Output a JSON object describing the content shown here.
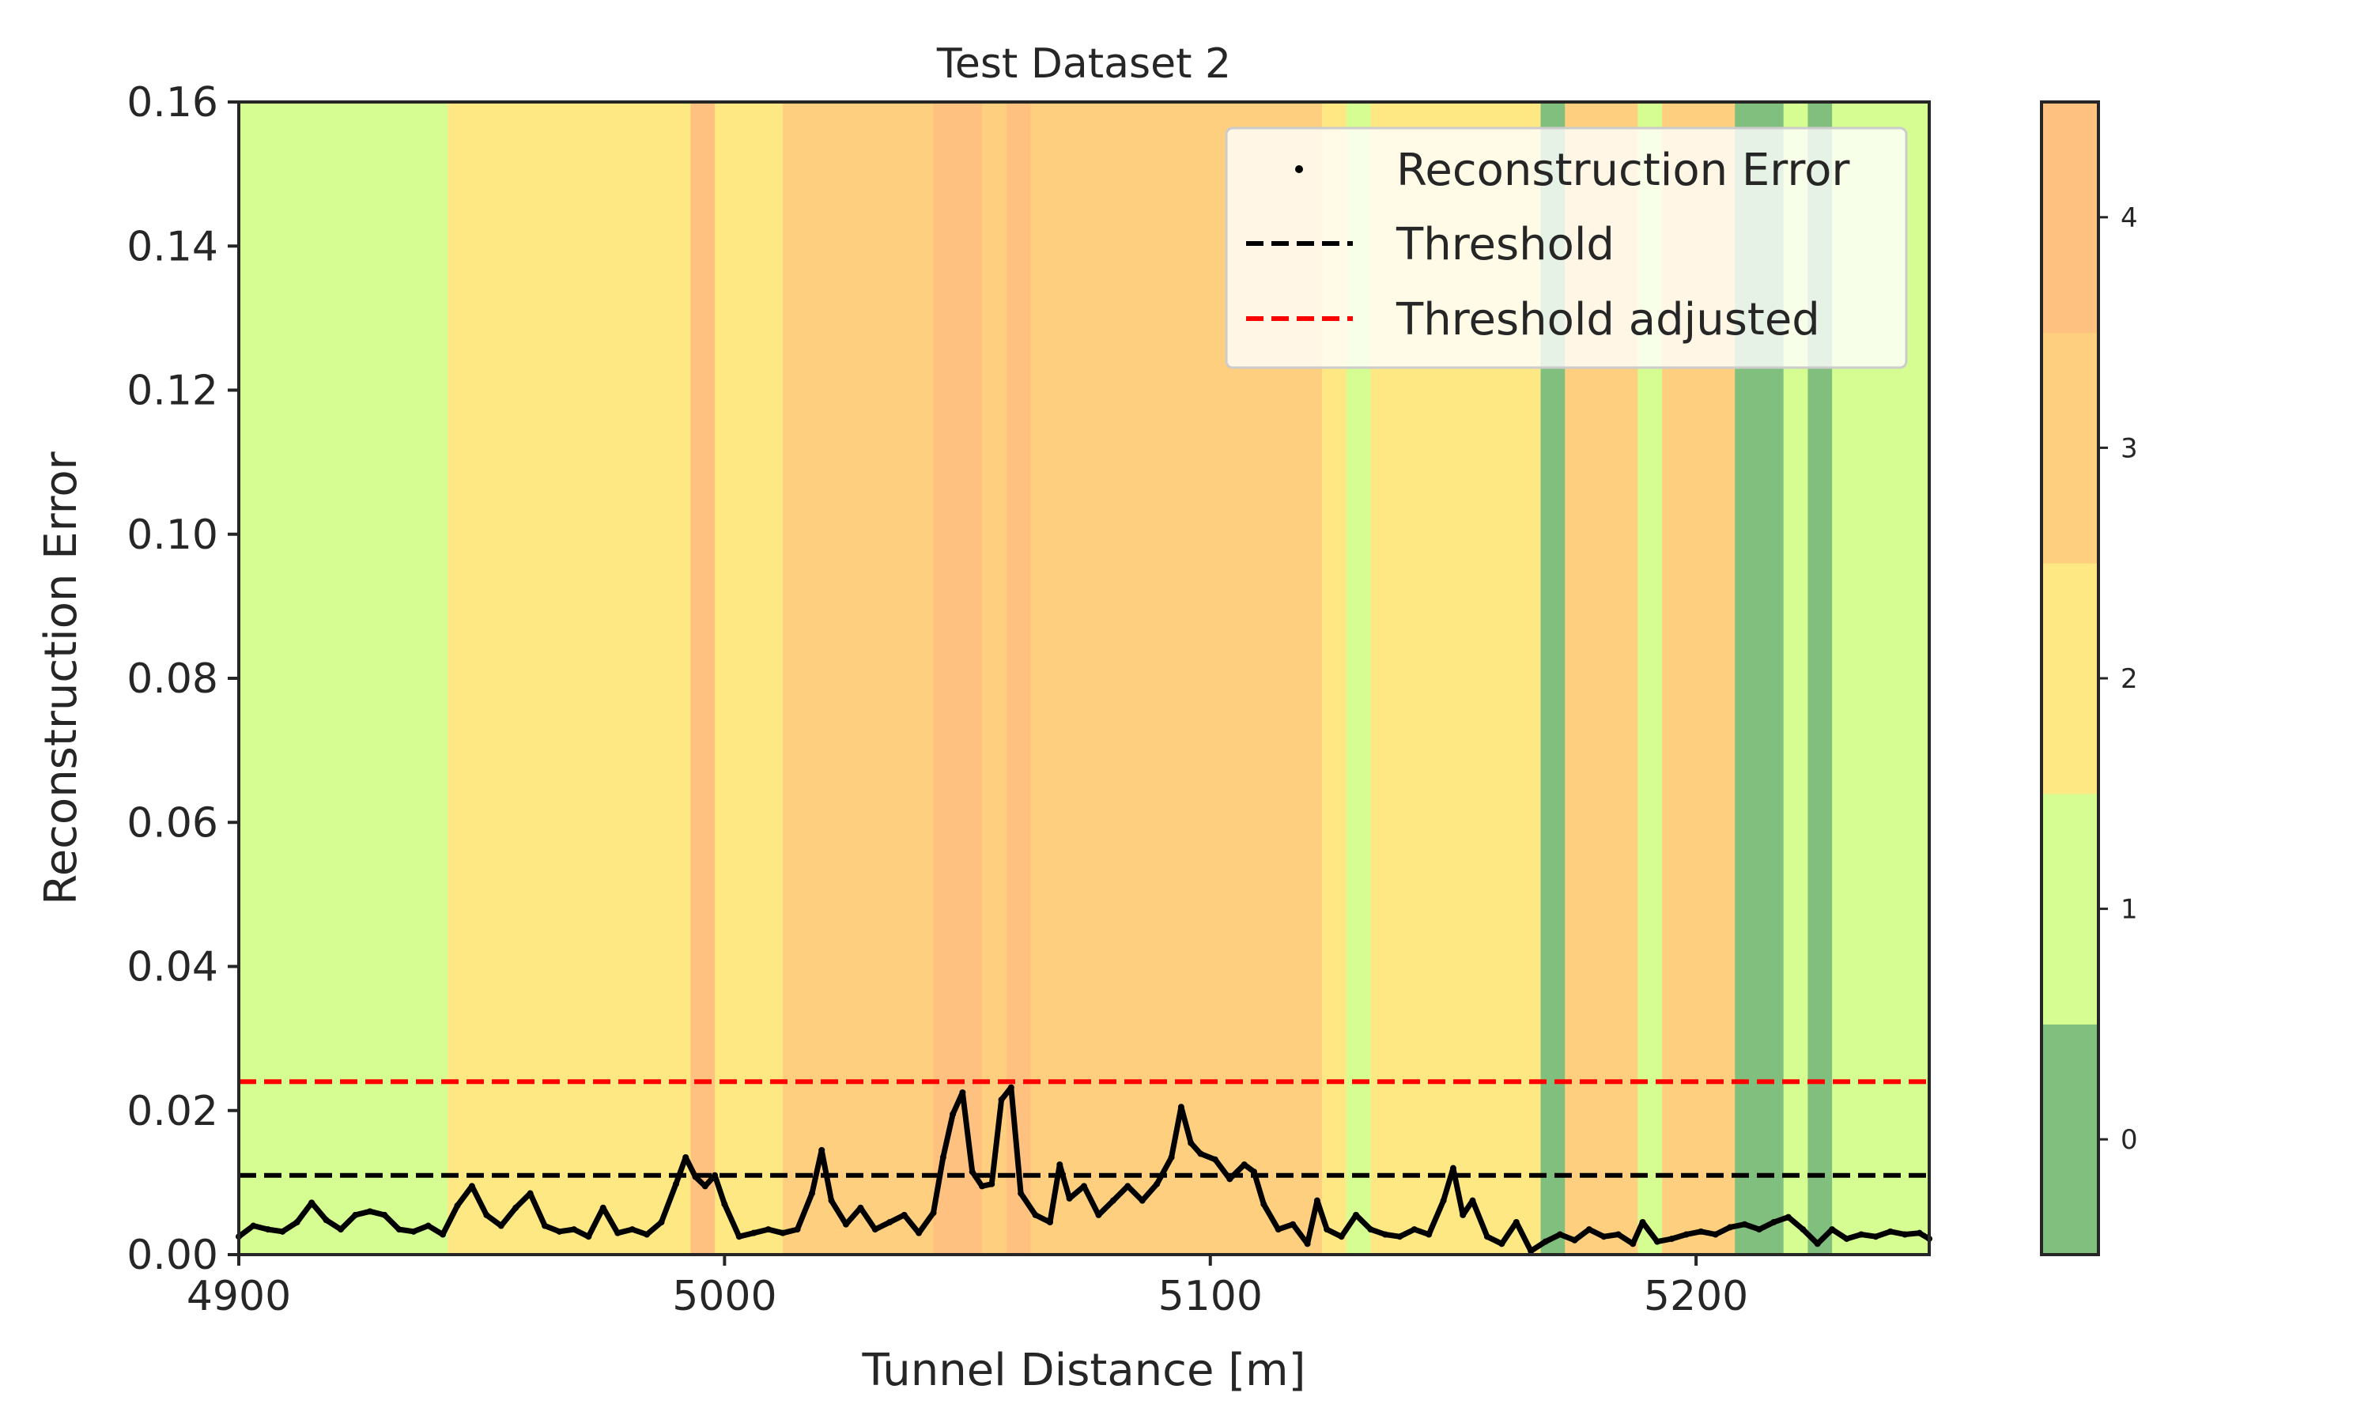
{
  "chart_data": {
    "type": "line",
    "title": "Test Dataset 2",
    "xlabel": "Tunnel Distance [m]",
    "ylabel": "Reconstruction Error",
    "xlim": [
      4900,
      5248
    ],
    "ylim": [
      0,
      0.16
    ],
    "x_ticks": [
      4900,
      5000,
      5100,
      5200
    ],
    "y_ticks": [
      0.0,
      0.02,
      0.04,
      0.06,
      0.08,
      0.1,
      0.12,
      0.14,
      0.16
    ],
    "y_tick_labels": [
      "0.00",
      "0.02",
      "0.04",
      "0.06",
      "0.08",
      "0.10",
      "0.12",
      "0.14",
      "0.16"
    ],
    "grid": false,
    "legend": {
      "placement": "top-right",
      "entries": [
        "Reconstruction Error",
        "Threshold",
        "Threshold adjusted"
      ]
    },
    "thresholds": [
      {
        "name": "Threshold",
        "value": 0.011,
        "color": "#000000",
        "style": "dashed"
      },
      {
        "name": "Threshold adjusted",
        "value": 0.024,
        "color": "#ff0000",
        "style": "dashed"
      }
    ],
    "class_colors": [
      "#81bf7f",
      "#d6fd92",
      "#fee883",
      "#fecf7f",
      "#fec17f"
    ],
    "colorbar": {
      "ticks": [
        0,
        1,
        2,
        3,
        4
      ],
      "range": [
        -0.5,
        4.5
      ]
    },
    "class_segments": [
      {
        "start": 4900,
        "end": 4943,
        "class": 1
      },
      {
        "start": 4943,
        "end": 4993,
        "class": 2
      },
      {
        "start": 4993,
        "end": 4998,
        "class": 4
      },
      {
        "start": 4998,
        "end": 5012,
        "class": 2
      },
      {
        "start": 5012,
        "end": 5043,
        "class": 3
      },
      {
        "start": 5043,
        "end": 5053,
        "class": 4
      },
      {
        "start": 5053,
        "end": 5058,
        "class": 3
      },
      {
        "start": 5058,
        "end": 5063,
        "class": 4
      },
      {
        "start": 5063,
        "end": 5123,
        "class": 3
      },
      {
        "start": 5123,
        "end": 5128,
        "class": 2
      },
      {
        "start": 5128,
        "end": 5133,
        "class": 1
      },
      {
        "start": 5133,
        "end": 5168,
        "class": 2
      },
      {
        "start": 5168,
        "end": 5173,
        "class": 0
      },
      {
        "start": 5173,
        "end": 5188,
        "class": 3
      },
      {
        "start": 5188,
        "end": 5193,
        "class": 1
      },
      {
        "start": 5193,
        "end": 5208,
        "class": 3
      },
      {
        "start": 5208,
        "end": 5218,
        "class": 0
      },
      {
        "start": 5218,
        "end": 5223,
        "class": 1
      },
      {
        "start": 5223,
        "end": 5228,
        "class": 0
      },
      {
        "start": 5228,
        "end": 5248,
        "class": 1
      }
    ],
    "series": [
      {
        "name": "Reconstruction Error",
        "color": "#000000",
        "points": [
          [
            4900,
            0.0025
          ],
          [
            4903,
            0.004
          ],
          [
            4906,
            0.0035
          ],
          [
            4909,
            0.0032
          ],
          [
            4912,
            0.0045
          ],
          [
            4915,
            0.0072
          ],
          [
            4918,
            0.0048
          ],
          [
            4921,
            0.0035
          ],
          [
            4924,
            0.0055
          ],
          [
            4927,
            0.006
          ],
          [
            4930,
            0.0055
          ],
          [
            4933,
            0.0035
          ],
          [
            4936,
            0.0032
          ],
          [
            4939,
            0.004
          ],
          [
            4942,
            0.0028
          ],
          [
            4945,
            0.0068
          ],
          [
            4948,
            0.0095
          ],
          [
            4951,
            0.0055
          ],
          [
            4954,
            0.004
          ],
          [
            4957,
            0.0065
          ],
          [
            4960,
            0.0085
          ],
          [
            4963,
            0.004
          ],
          [
            4966,
            0.0032
          ],
          [
            4969,
            0.0035
          ],
          [
            4972,
            0.0025
          ],
          [
            4975,
            0.0065
          ],
          [
            4978,
            0.003
          ],
          [
            4981,
            0.0035
          ],
          [
            4984,
            0.0028
          ],
          [
            4987,
            0.0045
          ],
          [
            4990,
            0.0098
          ],
          [
            4992,
            0.0135
          ],
          [
            4994,
            0.0108
          ],
          [
            4996,
            0.0095
          ],
          [
            4998,
            0.011
          ],
          [
            5000,
            0.007
          ],
          [
            5003,
            0.0025
          ],
          [
            5006,
            0.003
          ],
          [
            5009,
            0.0035
          ],
          [
            5012,
            0.003
          ],
          [
            5015,
            0.0035
          ],
          [
            5018,
            0.0085
          ],
          [
            5020,
            0.0145
          ],
          [
            5022,
            0.0075
          ],
          [
            5025,
            0.0042
          ],
          [
            5028,
            0.0065
          ],
          [
            5031,
            0.0035
          ],
          [
            5034,
            0.0045
          ],
          [
            5037,
            0.0055
          ],
          [
            5040,
            0.003
          ],
          [
            5043,
            0.0058
          ],
          [
            5045,
            0.0135
          ],
          [
            5047,
            0.0195
          ],
          [
            5049,
            0.0225
          ],
          [
            5051,
            0.0115
          ],
          [
            5053,
            0.0095
          ],
          [
            5055,
            0.0098
          ],
          [
            5057,
            0.0215
          ],
          [
            5059,
            0.0232
          ],
          [
            5061,
            0.0085
          ],
          [
            5064,
            0.0055
          ],
          [
            5067,
            0.0045
          ],
          [
            5069,
            0.0125
          ],
          [
            5071,
            0.0078
          ],
          [
            5074,
            0.0095
          ],
          [
            5077,
            0.0055
          ],
          [
            5080,
            0.0075
          ],
          [
            5083,
            0.0095
          ],
          [
            5086,
            0.0075
          ],
          [
            5089,
            0.0098
          ],
          [
            5092,
            0.0135
          ],
          [
            5094,
            0.0205
          ],
          [
            5096,
            0.0155
          ],
          [
            5098,
            0.014
          ],
          [
            5101,
            0.0132
          ],
          [
            5104,
            0.0105
          ],
          [
            5107,
            0.0125
          ],
          [
            5109,
            0.0115
          ],
          [
            5111,
            0.007
          ],
          [
            5114,
            0.0035
          ],
          [
            5117,
            0.0042
          ],
          [
            5120,
            0.0015
          ],
          [
            5122,
            0.0075
          ],
          [
            5124,
            0.0035
          ],
          [
            5127,
            0.0025
          ],
          [
            5130,
            0.0055
          ],
          [
            5133,
            0.0035
          ],
          [
            5136,
            0.0028
          ],
          [
            5139,
            0.0025
          ],
          [
            5142,
            0.0035
          ],
          [
            5145,
            0.0028
          ],
          [
            5148,
            0.0075
          ],
          [
            5150,
            0.012
          ],
          [
            5152,
            0.0055
          ],
          [
            5154,
            0.0075
          ],
          [
            5157,
            0.0025
          ],
          [
            5160,
            0.0015
          ],
          [
            5163,
            0.0045
          ],
          [
            5166,
            0.0005
          ],
          [
            5169,
            0.0018
          ],
          [
            5172,
            0.0028
          ],
          [
            5175,
            0.002
          ],
          [
            5178,
            0.0035
          ],
          [
            5181,
            0.0025
          ],
          [
            5184,
            0.0028
          ],
          [
            5187,
            0.0015
          ],
          [
            5189,
            0.0045
          ],
          [
            5192,
            0.0018
          ],
          [
            5195,
            0.0022
          ],
          [
            5198,
            0.0028
          ],
          [
            5201,
            0.0032
          ],
          [
            5204,
            0.0028
          ],
          [
            5207,
            0.0038
          ],
          [
            5210,
            0.0042
          ],
          [
            5213,
            0.0035
          ],
          [
            5216,
            0.0045
          ],
          [
            5219,
            0.0052
          ],
          [
            5222,
            0.0035
          ],
          [
            5225,
            0.0015
          ],
          [
            5228,
            0.0035
          ],
          [
            5231,
            0.0022
          ],
          [
            5234,
            0.0028
          ],
          [
            5237,
            0.0025
          ],
          [
            5240,
            0.0032
          ],
          [
            5243,
            0.0028
          ],
          [
            5246,
            0.003
          ],
          [
            5248,
            0.0022
          ]
        ]
      }
    ]
  }
}
